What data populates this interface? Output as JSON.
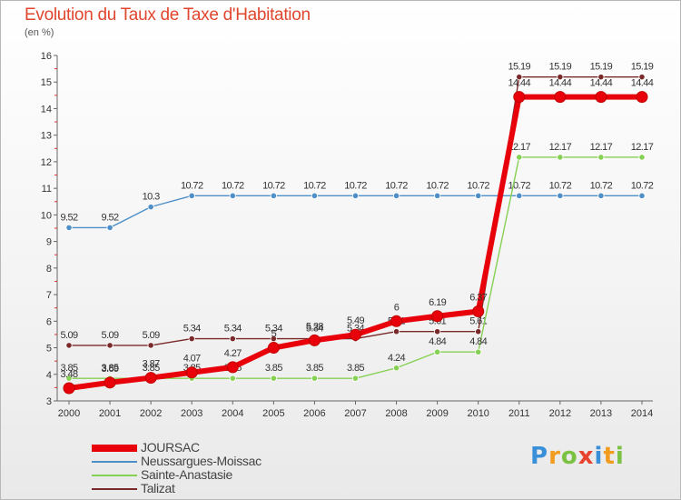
{
  "title": "Evolution du Taux de Taxe d'Habitation",
  "subtitle": "(en %)",
  "brand": {
    "letters": [
      "P",
      "r",
      "o",
      "x",
      "i",
      "t",
      "i"
    ],
    "colors": [
      "#3a8fd9",
      "#f29c1f",
      "#7cc242",
      "#e8432f",
      "#3a8fd9",
      "#f29c1f",
      "#7cc242"
    ]
  },
  "chart_data": {
    "type": "line",
    "x": [
      "2000",
      "2001",
      "2002",
      "2003",
      "2004",
      "2005",
      "2006",
      "2007",
      "2008",
      "2009",
      "2010",
      "2011",
      "2012",
      "2013",
      "2014"
    ],
    "ylim": [
      3,
      16
    ],
    "yticks": [
      "3",
      "4",
      "5",
      "6",
      "7",
      "8",
      "9",
      "10",
      "11",
      "12",
      "13",
      "14",
      "15",
      "16"
    ],
    "grid": false,
    "legend_position": "bottom-left",
    "series": [
      {
        "name": "Talizat",
        "color": "#7a2a2a",
        "values": [
          5.09,
          5.09,
          5.09,
          5.34,
          5.34,
          5.34,
          5.34,
          5.34,
          5.61,
          5.61,
          5.61,
          15.19,
          15.19,
          15.19,
          15.19
        ],
        "labels": [
          "5.09",
          "5.09",
          "5.09",
          "5.34",
          "5.34",
          "5.34",
          "5.34",
          "5.34",
          "5.61",
          "5.61",
          "5.61",
          "15.19",
          "15.19",
          "15.19",
          "15.19"
        ]
      },
      {
        "name": "Neussargues-Moissac",
        "color": "#4f8fc7",
        "values": [
          9.52,
          9.52,
          10.3,
          10.72,
          10.72,
          10.72,
          10.72,
          10.72,
          10.72,
          10.72,
          10.72,
          10.72,
          10.72,
          10.72,
          10.72
        ],
        "labels": [
          "9.52",
          "9.52",
          "10.3",
          "10.72",
          "10.72",
          "10.72",
          "10.72",
          "10.72",
          "10.72",
          "10.72",
          "10.72",
          "10.72",
          "10.72",
          "10.72",
          "10.72"
        ]
      },
      {
        "name": "Sainte-Anastasie",
        "color": "#86d053",
        "values": [
          3.85,
          3.85,
          3.85,
          3.85,
          3.85,
          3.85,
          3.85,
          3.85,
          4.24,
          4.84,
          4.84,
          12.17,
          12.17,
          12.17,
          12.17
        ],
        "labels": [
          "3.85",
          "3.85",
          "3.85",
          "3.85",
          "3.85",
          "3.85",
          "3.85",
          "3.85",
          "4.24",
          "4.84",
          "4.84",
          "12.17",
          "12.17",
          "12.17",
          "12.17"
        ]
      },
      {
        "name": "JOURSAC",
        "color": "#e8000b",
        "values": [
          3.48,
          3.69,
          3.87,
          4.07,
          4.27,
          5.0,
          5.28,
          5.49,
          6.0,
          6.19,
          6.37,
          14.44,
          14.44,
          14.44,
          14.44
        ],
        "labels": [
          "3.48",
          "3.69",
          "3.87",
          "4.07",
          "4.27",
          "5",
          "5.28",
          "5.49",
          "6",
          "6.19",
          "6.37",
          "14.44",
          "14.44",
          "14.44",
          "14.44"
        ]
      }
    ],
    "legend_order": [
      "JOURSAC",
      "Neussargues-Moissac",
      "Sainte-Anastasie",
      "Talizat"
    ]
  }
}
